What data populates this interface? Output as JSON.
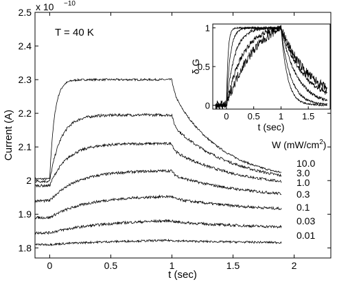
{
  "chart_data": [
    {
      "type": "line",
      "xlabel": "t (sec)",
      "ylabel": "Current (A)",
      "y_multiplier": "x 10",
      "y_exponent": "−10",
      "xlim": [
        -0.12,
        2.3
      ],
      "ylim": [
        1.77,
        2.5
      ],
      "x_ticks": [
        0,
        0.5,
        1,
        1.5,
        2
      ],
      "x_tick_labels": [
        "0",
        "0.5",
        "1",
        "1.5",
        "2"
      ],
      "y_ticks": [
        1.8,
        1.9,
        2.0,
        2.1,
        2.2,
        2.3,
        2.4,
        2.5
      ],
      "y_tick_labels": [
        "1.8",
        "1.9",
        "2",
        "2.1",
        "2.2",
        "2.3",
        "2.4",
        "2.5"
      ],
      "grid": false,
      "annotations": {
        "temperature": "T = 40 K",
        "legend_title": "W  (mW/cm",
        "legend_title_sup": "2",
        "legend_title_end": ")"
      },
      "legend_placement": "right",
      "series": [
        {
          "name": "10.0",
          "start": 2.005,
          "plateau": 2.3,
          "end": 1.995,
          "tau_rise": 0.04,
          "tau_fall": 0.4,
          "drop": 0.035,
          "noise": 0.003,
          "end_label": "10.0"
        },
        {
          "name": "3.0",
          "start": 1.998,
          "plateau": 2.195,
          "end": 1.985,
          "tau_rise": 0.09,
          "tau_fall": 0.5,
          "drop": 0.03,
          "noise": 0.004,
          "end_label": "3.0"
        },
        {
          "name": "1.0",
          "start": 1.985,
          "plateau": 2.11,
          "end": 1.975,
          "tau_rise": 0.14,
          "tau_fall": 0.55,
          "drop": 0.02,
          "noise": 0.004,
          "end_label": "1.0"
        },
        {
          "name": "0.3",
          "start": 1.94,
          "plateau": 2.03,
          "end": 1.945,
          "tau_rise": 0.22,
          "tau_fall": 0.6,
          "drop": 0.012,
          "noise": 0.004,
          "end_label": "0.3"
        },
        {
          "name": "0.1",
          "start": 1.89,
          "plateau": 1.955,
          "end": 1.905,
          "tau_rise": 0.3,
          "tau_fall": 0.7,
          "drop": 0.006,
          "noise": 0.004,
          "end_label": "0.1"
        },
        {
          "name": "0.03",
          "start": 1.845,
          "plateau": 1.885,
          "end": 1.855,
          "tau_rise": 0.45,
          "tau_fall": 0.8,
          "drop": 0.003,
          "noise": 0.004,
          "end_label": "0.03"
        },
        {
          "name": "0.01",
          "start": 1.81,
          "plateau": 1.825,
          "end": 1.813,
          "tau_rise": 0.6,
          "tau_fall": 0.9,
          "drop": 0.001,
          "noise": 0.003,
          "end_label": "0.01"
        }
      ]
    },
    {
      "type": "line",
      "role": "inset",
      "xlabel": "t (sec)",
      "ylabel": "δ G",
      "xlim": [
        -0.25,
        1.9
      ],
      "ylim": [
        -0.05,
        1.05
      ],
      "x_ticks": [
        0,
        0.5,
        1,
        1.5
      ],
      "x_tick_labels": [
        "0",
        "0.5",
        "1",
        "1.5"
      ],
      "y_ticks": [
        0,
        0.5,
        1
      ],
      "y_tick_labels": [
        "0",
        "0.5",
        "1"
      ],
      "grid": false,
      "series": [
        {
          "tau_rise": 0.03,
          "tau_fall": 0.12,
          "noise": 0.01
        },
        {
          "tau_rise": 0.07,
          "tau_fall": 0.18,
          "noise": 0.015
        },
        {
          "tau_rise": 0.15,
          "tau_fall": 0.3,
          "noise": 0.02
        },
        {
          "tau_rise": 0.3,
          "tau_fall": 0.45,
          "noise": 0.035
        },
        {
          "tau_rise": 0.55,
          "tau_fall": 0.55,
          "noise": 0.06
        }
      ]
    }
  ]
}
